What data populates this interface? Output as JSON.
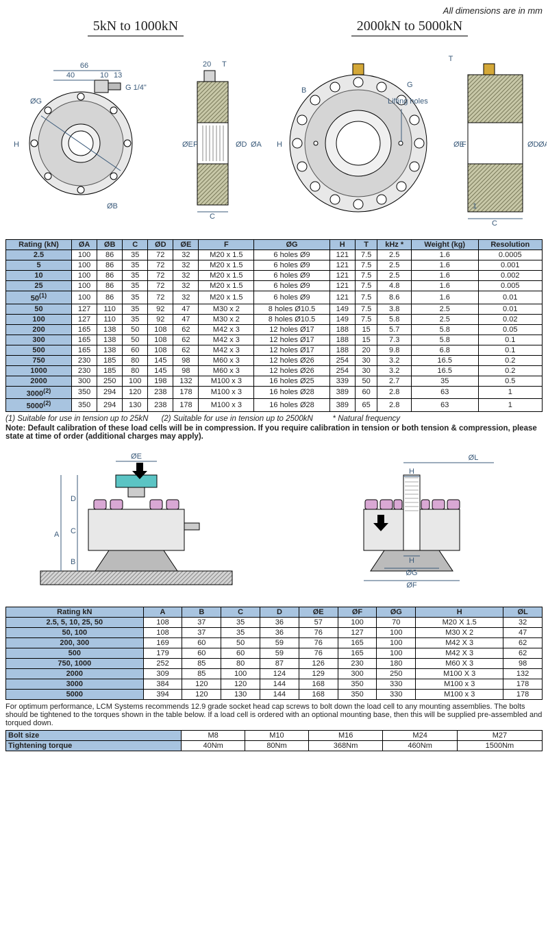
{
  "top_note": "All dimensions are in mm",
  "diag1_title": "5kN to 1000kN",
  "diag2_title": "2000kN to 5000kN",
  "labels": {
    "l66": "66",
    "l40": "40",
    "l10": "10",
    "l13": "13",
    "l20": "20",
    "g14": "G 1/4\"",
    "l1": "1",
    "OA": "ØA",
    "OB": "ØB",
    "OD": "ØD",
    "OE": "ØE",
    "OG": "ØG",
    "H": "H",
    "C": "C",
    "F": "F",
    "T": "T",
    "B": "B",
    "G": "G",
    "lifting": "Lifting holes",
    "OF": "ØF",
    "OL": "ØL",
    "A": "A",
    "D": "D"
  },
  "table1": {
    "headers": [
      "Rating (kN)",
      "ØA",
      "ØB",
      "C",
      "ØD",
      "ØE",
      "F",
      "ØG",
      "H",
      "T",
      "kHz *",
      "Weight (kg)",
      "Resolution"
    ],
    "rows": [
      [
        "2.5",
        "100",
        "86",
        "35",
        "72",
        "32",
        "M20 x 1.5",
        "6 holes Ø9",
        "121",
        "7.5",
        "2.5",
        "1.6",
        "0.0005"
      ],
      [
        "5",
        "100",
        "86",
        "35",
        "72",
        "32",
        "M20 x 1.5",
        "6 holes Ø9",
        "121",
        "7.5",
        "2.5",
        "1.6",
        "0.001"
      ],
      [
        "10",
        "100",
        "86",
        "35",
        "72",
        "32",
        "M20 x 1.5",
        "6 holes Ø9",
        "121",
        "7.5",
        "2.5",
        "1.6",
        "0.002"
      ],
      [
        "25",
        "100",
        "86",
        "35",
        "72",
        "32",
        "M20 x 1.5",
        "6 holes Ø9",
        "121",
        "7.5",
        "4.8",
        "1.6",
        "0.005"
      ],
      [
        "50<sup>(1)</sup>",
        "100",
        "86",
        "35",
        "72",
        "32",
        "M20 x 1.5",
        "6 holes Ø9",
        "121",
        "7.5",
        "8.6",
        "1.6",
        "0.01"
      ],
      [
        "50",
        "127",
        "110",
        "35",
        "92",
        "47",
        "M30 x 2",
        "8 holes Ø10.5",
        "149",
        "7.5",
        "3.8",
        "2.5",
        "0.01"
      ],
      [
        "100",
        "127",
        "110",
        "35",
        "92",
        "47",
        "M30 x 2",
        "8 holes Ø10.5",
        "149",
        "7.5",
        "5.8",
        "2.5",
        "0.02"
      ],
      [
        "200",
        "165",
        "138",
        "50",
        "108",
        "62",
        "M42 x 3",
        "12 holes Ø17",
        "188",
        "15",
        "5.7",
        "5.8",
        "0.05"
      ],
      [
        "300",
        "165",
        "138",
        "50",
        "108",
        "62",
        "M42 x 3",
        "12 holes Ø17",
        "188",
        "15",
        "7.3",
        "5.8",
        "0.1"
      ],
      [
        "500",
        "165",
        "138",
        "60",
        "108",
        "62",
        "M42 x 3",
        "12 holes Ø17",
        "188",
        "20",
        "9.8",
        "6.8",
        "0.1"
      ],
      [
        "750",
        "230",
        "185",
        "80",
        "145",
        "98",
        "M60 x 3",
        "12 holes Ø26",
        "254",
        "30",
        "3.2",
        "16.5",
        "0.2"
      ],
      [
        "1000",
        "230",
        "185",
        "80",
        "145",
        "98",
        "M60 x 3",
        "12 holes Ø26",
        "254",
        "30",
        "3.2",
        "16.5",
        "0.2"
      ],
      [
        "2000",
        "300",
        "250",
        "100",
        "198",
        "132",
        "M100 x 3",
        "16 holes Ø25",
        "339",
        "50",
        "2.7",
        "35",
        "0.5"
      ],
      [
        "3000<sup>(2)</sup>",
        "350",
        "294",
        "120",
        "238",
        "178",
        "M100 x 3",
        "16 holes Ø28",
        "389",
        "60",
        "2.8",
        "63",
        "1"
      ],
      [
        "5000<sup>(2)</sup>",
        "350",
        "294",
        "130",
        "238",
        "178",
        "M100 x 3",
        "16 holes Ø28",
        "389",
        "65",
        "2.8",
        "63",
        "1"
      ]
    ]
  },
  "foot1": "(1) Suitable for use in tension up to 25kN",
  "foot2": "(2) Suitable for use in tension up to 2500kN",
  "foot3": "* Natural frequency",
  "note_bold": "Note: Default calibration of these load cells will be in compression. If you require calibration in tension or both tension & compression, please state at time of order (additional charges may apply).",
  "table2": {
    "headers": [
      "Rating kN",
      "A",
      "B",
      "C",
      "D",
      "ØE",
      "ØF",
      "ØG",
      "H",
      "ØL"
    ],
    "rows": [
      [
        "2.5, 5, 10, 25, 50",
        "108",
        "37",
        "35",
        "36",
        "57",
        "100",
        "70",
        "M20 X 1.5",
        "32"
      ],
      [
        "50, 100",
        "108",
        "37",
        "35",
        "36",
        "76",
        "127",
        "100",
        "M30 X 2",
        "47"
      ],
      [
        "200, 300",
        "169",
        "60",
        "50",
        "59",
        "76",
        "165",
        "100",
        "M42 X 3",
        "62"
      ],
      [
        "500",
        "179",
        "60",
        "60",
        "59",
        "76",
        "165",
        "100",
        "M42 X 3",
        "62"
      ],
      [
        "750, 1000",
        "252",
        "85",
        "80",
        "87",
        "126",
        "230",
        "180",
        "M60 X 3",
        "98"
      ],
      [
        "2000",
        "309",
        "85",
        "100",
        "124",
        "129",
        "300",
        "250",
        "M100 X 3",
        "132"
      ],
      [
        "3000",
        "384",
        "120",
        "120",
        "144",
        "168",
        "350",
        "330",
        "M100 x 3",
        "178"
      ],
      [
        "5000",
        "394",
        "120",
        "130",
        "144",
        "168",
        "350",
        "330",
        "M100 x 3",
        "178"
      ]
    ]
  },
  "torque_note": "For optimum performance, LCM Systems recommends 12.9 grade socket head cap screws to bolt down the load cell to any mounting assemblies. The bolts should be tightened to the torques shown in the table below. If a load cell is ordered with an optional mounting base, then this will be supplied pre-assembled and torqued down.",
  "table3": {
    "row1": [
      "Bolt size",
      "M8",
      "M10",
      "M16",
      "M24",
      "M27"
    ],
    "row2": [
      "Tightening torque",
      "40Nm",
      "80Nm",
      "368Nm",
      "460Nm",
      "1500Nm"
    ]
  },
  "colors": {
    "header_bg": "#a8c4e0",
    "metal_light": "#e8e8e8",
    "metal_mid": "#d5d5d5",
    "metal_dark": "#bbbbbb",
    "hatch_bg": "#c8c8a8",
    "teal": "#5bc4c4",
    "pink": "#d9a8d4",
    "gold": "#d4a838",
    "dim_line": "#3a5a7a"
  }
}
